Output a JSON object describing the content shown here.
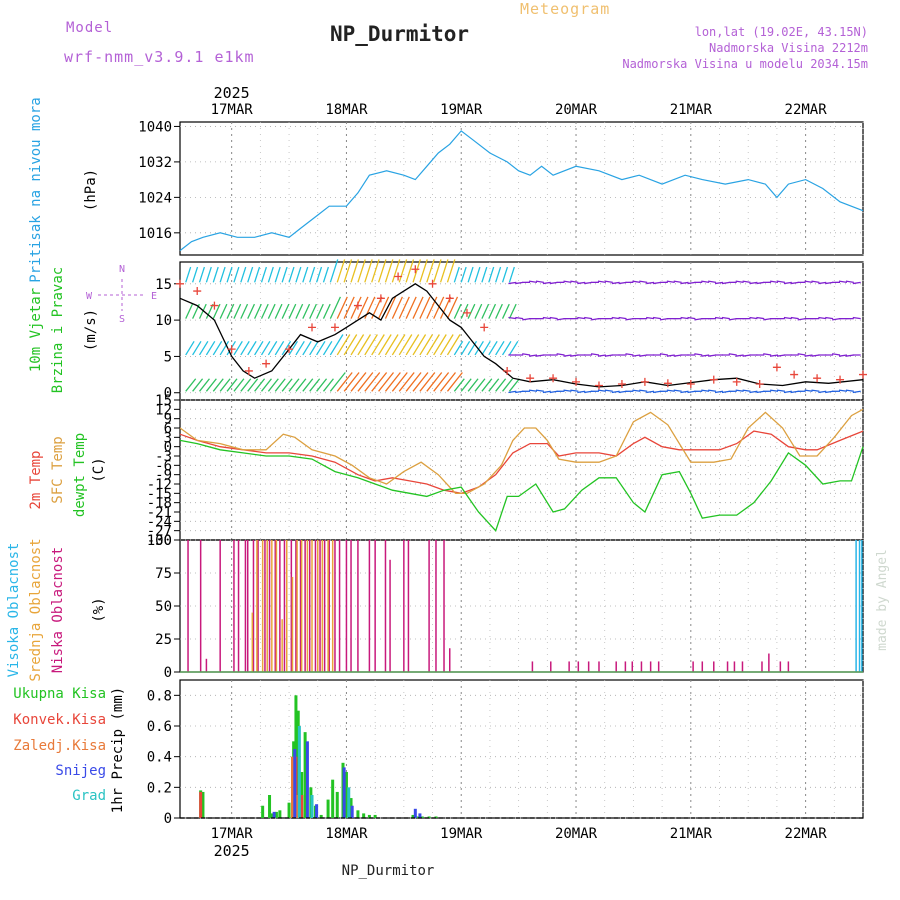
{
  "header": {
    "model_label": "Model",
    "model_name": "wrf-nmm_v3.9.1 e1km",
    "chart_type_label": "Meteogram",
    "station": "NP_Durmitor",
    "lonlat": "lon,lat (19.02E, 43.15N)",
    "altitude": "Nadmorska Visina 2212m",
    "model_altitude": "Nadmorska Visina u modelu 2034.15m"
  },
  "time_axis": {
    "year": "2025",
    "days": [
      "17MAR",
      "18MAR",
      "19MAR",
      "20MAR",
      "21MAR",
      "22MAR"
    ],
    "start_day": 16.55,
    "end_day": 22.5
  },
  "footer": {
    "station": "NP_Durmitor",
    "watermark": "made by Angel"
  },
  "colors": {
    "pressure": "#29a3e3",
    "t2m": "#e8463a",
    "tsfc": "#dca040",
    "dewpoint": "#23c323",
    "wind_speed_line": "#000000",
    "gust_marks": "#e8463a",
    "cloud_high": "#2ab6e8",
    "cloud_mid": "#e8a53a",
    "cloud_low": "#c8197c",
    "rain_total": "#23c323",
    "rain_convective": "#e8463a",
    "rain_freezing": "#e87a3a",
    "snow": "#3a4ae8",
    "graupel": "#2ac3c3"
  },
  "chart_data": [
    {
      "type": "line",
      "panel": "pressure",
      "ylabel": "Pritisak na nivou mora",
      "unit": "(hPa)",
      "ylim": [
        1011,
        1041
      ],
      "yticks": [
        1016,
        1024,
        1032,
        1040
      ],
      "grid": true,
      "series": [
        {
          "x": [
            16.55,
            16.65,
            16.75,
            16.9,
            17.05,
            17.2,
            17.35,
            17.5,
            17.6,
            17.75,
            17.85,
            18.0,
            18.1,
            18.2,
            18.35,
            18.5,
            18.6,
            18.7,
            18.8,
            18.9,
            19.0,
            19.1,
            19.25,
            19.4,
            19.5,
            19.6,
            19.7,
            19.8,
            20.0,
            20.2,
            20.4,
            20.55,
            20.75,
            20.95,
            21.1,
            21.3,
            21.5,
            21.65,
            21.75,
            21.85,
            22.0,
            22.15,
            22.3,
            22.5
          ],
          "y": [
            1012,
            1014,
            1015,
            1016,
            1015,
            1015,
            1016,
            1015,
            1017,
            1020,
            1022,
            1022,
            1025,
            1029,
            1030,
            1029,
            1028,
            1031,
            1034,
            1036,
            1039,
            1037,
            1034,
            1032,
            1030,
            1029,
            1031,
            1029,
            1031,
            1030,
            1028,
            1029,
            1027,
            1029,
            1028,
            1027,
            1028,
            1027,
            1024,
            1027,
            1028,
            1026,
            1023,
            1021
          ]
        }
      ]
    },
    {
      "type": "line",
      "panel": "wind",
      "ylabel": "10m Vjetar Brzina i Pravac",
      "unit": "(m/s)",
      "ylim": [
        -1,
        18
      ],
      "yticks": [
        0,
        5,
        10,
        15
      ],
      "grid": true,
      "series": [
        {
          "name": "speed",
          "x": [
            16.55,
            16.7,
            16.85,
            17.0,
            17.1,
            17.2,
            17.35,
            17.5,
            17.6,
            17.75,
            17.9,
            18.0,
            18.1,
            18.2,
            18.3,
            18.4,
            18.5,
            18.6,
            18.7,
            18.8,
            18.9,
            19.0,
            19.1,
            19.2,
            19.3,
            19.45,
            19.6,
            19.8,
            20.0,
            20.2,
            20.4,
            20.6,
            20.8,
            21.0,
            21.2,
            21.4,
            21.6,
            21.8,
            22.0,
            22.2,
            22.5
          ],
          "y": [
            13,
            12,
            10,
            5,
            3,
            2,
            3,
            6,
            8,
            7,
            8,
            9,
            10,
            11,
            10,
            13,
            14,
            15,
            14,
            12,
            10,
            9,
            7,
            5,
            4,
            2,
            1.5,
            1.8,
            1.2,
            0.8,
            1.0,
            1.5,
            1.0,
            1.4,
            1.8,
            2.0,
            1.2,
            1.0,
            1.5,
            1.3,
            1.8
          ]
        },
        {
          "name": "gust",
          "x": [
            16.55,
            16.7,
            16.85,
            17.0,
            17.15,
            17.3,
            17.5,
            17.7,
            17.9,
            18.1,
            18.3,
            18.45,
            18.6,
            18.75,
            18.9,
            19.05,
            19.2,
            19.4,
            19.6,
            19.8,
            20.0,
            20.2,
            20.4,
            20.6,
            20.8,
            21.0,
            21.2,
            21.4,
            21.6,
            21.75,
            21.9,
            22.1,
            22.3,
            22.5
          ],
          "y": [
            15,
            14,
            12,
            6,
            3,
            4,
            6,
            9,
            9,
            12,
            13,
            16,
            17,
            15,
            13,
            11,
            9,
            3,
            2,
            2,
            1.5,
            1,
            1.2,
            1.5,
            1.3,
            1.2,
            1.8,
            1.5,
            1.2,
            3.5,
            2.5,
            2,
            1.8,
            2.5
          ]
        }
      ]
    },
    {
      "type": "line",
      "panel": "temperature",
      "ylabel": "2m Temp / SFC Temp / dewpt Temp",
      "unit": "(C)",
      "ylim": [
        -30,
        15
      ],
      "yticks": [
        -30,
        -27,
        -24,
        -21,
        -18,
        -15,
        -12,
        -9,
        -6,
        -3,
        0,
        3,
        6,
        9,
        12,
        15
      ],
      "grid": true,
      "series": [
        {
          "name": "2m Temp",
          "x": [
            16.55,
            16.7,
            16.9,
            17.1,
            17.3,
            17.5,
            17.7,
            17.9,
            18.1,
            18.25,
            18.4,
            18.55,
            18.7,
            18.85,
            19.0,
            19.15,
            19.3,
            19.45,
            19.6,
            19.75,
            19.85,
            20.0,
            20.2,
            20.35,
            20.5,
            20.6,
            20.75,
            20.9,
            21.1,
            21.25,
            21.4,
            21.55,
            21.7,
            21.85,
            22.0,
            22.1,
            22.3,
            22.5
          ],
          "y": [
            4,
            2,
            0,
            -1,
            -2,
            -2,
            -3,
            -5,
            -9,
            -11,
            -10,
            -11,
            -12,
            -14,
            -15,
            -13,
            -9,
            -2,
            1,
            1,
            -3,
            -2,
            -2,
            -3,
            1,
            3,
            0,
            -1,
            -1,
            -1,
            1,
            5,
            4,
            0,
            -1,
            -1,
            2,
            5
          ]
        },
        {
          "name": "SFC Temp",
          "x": [
            16.55,
            16.7,
            16.9,
            17.1,
            17.3,
            17.45,
            17.55,
            17.7,
            17.9,
            18.05,
            18.2,
            18.35,
            18.5,
            18.65,
            18.8,
            18.95,
            19.05,
            19.2,
            19.35,
            19.45,
            19.55,
            19.65,
            19.75,
            19.85,
            20.0,
            20.2,
            20.35,
            20.5,
            20.65,
            20.8,
            21.0,
            21.2,
            21.35,
            21.5,
            21.65,
            21.8,
            21.95,
            22.1,
            22.25,
            22.4,
            22.5
          ],
          "y": [
            6,
            2,
            1,
            -1,
            -1,
            4,
            3,
            -1,
            -3,
            -6,
            -10,
            -12,
            -8,
            -5,
            -9,
            -15,
            -15,
            -12,
            -6,
            2,
            6,
            6,
            2,
            -4,
            -5,
            -5,
            -3,
            8,
            11,
            7,
            -5,
            -5,
            -4,
            6,
            11,
            6,
            -3,
            -3,
            3,
            10,
            12
          ]
        },
        {
          "name": "dewpt Temp",
          "x": [
            16.55,
            16.7,
            16.9,
            17.1,
            17.3,
            17.5,
            17.7,
            17.9,
            18.1,
            18.25,
            18.4,
            18.55,
            18.7,
            18.85,
            19.0,
            19.15,
            19.3,
            19.4,
            19.5,
            19.65,
            19.8,
            19.9,
            20.05,
            20.2,
            20.35,
            20.5,
            20.6,
            20.75,
            20.9,
            21.0,
            21.1,
            21.25,
            21.4,
            21.55,
            21.7,
            21.85,
            22.0,
            22.15,
            22.3,
            22.4,
            22.5
          ],
          "y": [
            2,
            1,
            -1,
            -2,
            -3,
            -3,
            -4,
            -8,
            -10,
            -12,
            -14,
            -15,
            -16,
            -14,
            -13,
            -21,
            -27,
            -16,
            -16,
            -12,
            -21,
            -20,
            -14,
            -10,
            -10,
            -18,
            -21,
            -9,
            -8,
            -15,
            -23,
            -22,
            -22,
            -18,
            -11,
            -2,
            -6,
            -12,
            -11,
            -11,
            0
          ]
        }
      ]
    },
    {
      "type": "bar",
      "panel": "cloud",
      "ylabel": "Visoka Oblacnost / Srednja Oblacnost / Niska Oblacnost",
      "unit": "(%)",
      "ylim": [
        0,
        100
      ],
      "yticks": [
        0,
        25,
        50,
        75,
        100
      ],
      "grid": true,
      "series": [
        {
          "name": "Niska Oblacnost",
          "x": [
            16.62,
            16.73,
            16.78,
            16.9,
            17.02,
            17.06,
            17.12,
            17.14,
            17.19,
            17.23,
            17.29,
            17.33,
            17.38,
            17.42,
            17.46,
            17.52,
            17.56,
            17.6,
            17.64,
            17.68,
            17.73,
            17.77,
            17.81,
            17.85,
            17.9,
            17.94,
            18.0,
            18.04,
            18.1,
            18.2,
            18.25,
            18.34,
            18.38,
            18.5,
            18.54,
            18.72,
            18.78,
            18.85,
            18.9,
            19.62,
            19.78,
            19.94,
            20.02,
            20.11,
            20.2,
            20.35,
            20.43,
            20.49,
            20.57,
            20.65,
            20.72,
            21.02,
            21.1,
            21.2,
            21.32,
            21.38,
            21.45,
            21.62,
            21.68,
            21.78,
            21.85
          ],
          "y": [
            100,
            100,
            10,
            100,
            100,
            100,
            100,
            100,
            100,
            100,
            100,
            100,
            100,
            100,
            100,
            100,
            100,
            100,
            100,
            100,
            100,
            100,
            100,
            100,
            100,
            100,
            100,
            100,
            100,
            100,
            100,
            100,
            85,
            100,
            100,
            100,
            100,
            100,
            18,
            8,
            8,
            8,
            8,
            8,
            8,
            8,
            8,
            8,
            8,
            8,
            8,
            8,
            8,
            8,
            8,
            8,
            8,
            8,
            14,
            8,
            8
          ]
        },
        {
          "name": "Srednja Oblacnost",
          "x": [
            17.18,
            17.22,
            17.27,
            17.31,
            17.35,
            17.39,
            17.44,
            17.48,
            17.53,
            17.57,
            17.61,
            17.66,
            17.7,
            17.75,
            17.79,
            17.84,
            17.88
          ],
          "y": [
            45,
            100,
            100,
            100,
            100,
            100,
            40,
            100,
            72,
            100,
            100,
            100,
            100,
            100,
            100,
            100,
            100
          ]
        },
        {
          "name": "Visoka Oblacnost",
          "x": [
            22.44,
            22.47,
            22.49
          ],
          "y": [
            100,
            100,
            100
          ]
        }
      ]
    },
    {
      "type": "bar",
      "panel": "precip",
      "ylabel": "1hr Precip",
      "unit": "(mm)",
      "ylim": [
        0,
        0.9
      ],
      "yticks": [
        0,
        0.2,
        0.4,
        0.6,
        0.8
      ],
      "grid": true,
      "series": [
        {
          "name": "Ukupna Kisa",
          "x": [
            16.73,
            16.75,
            17.27,
            17.33,
            17.35,
            17.39,
            17.42,
            17.5,
            17.54,
            17.56,
            17.58,
            17.61,
            17.64,
            17.69,
            17.73,
            17.78,
            17.84,
            17.88,
            17.92,
            17.97,
            18.0,
            18.04,
            18.1,
            18.15,
            18.2,
            18.25,
            18.58,
            18.62,
            18.66,
            18.72,
            18.78
          ],
          "y": [
            0.18,
            0.17,
            0.08,
            0.15,
            0.03,
            0.04,
            0.05,
            0.1,
            0.5,
            0.8,
            0.7,
            0.3,
            0.56,
            0.2,
            0.08,
            0.02,
            0.12,
            0.25,
            0.17,
            0.36,
            0.3,
            0.13,
            0.05,
            0.03,
            0.02,
            0.02,
            0.02,
            0.01,
            0.01,
            0.01,
            0.01
          ]
        },
        {
          "name": "Konvek.Kisa",
          "x": [
            16.73,
            17.56,
            17.61
          ],
          "y": [
            0.17,
            0.4,
            0.15
          ]
        },
        {
          "name": "Zaledj.Kisa",
          "x": [
            17.53,
            17.57
          ],
          "y": [
            0.4,
            0.15
          ]
        },
        {
          "name": "Snijeg",
          "x": [
            17.37,
            17.55,
            17.66,
            17.74,
            17.98,
            18.05,
            18.6,
            18.64
          ],
          "y": [
            0.04,
            0.45,
            0.5,
            0.09,
            0.33,
            0.08,
            0.06,
            0.03
          ]
        },
        {
          "name": "Grad",
          "x": [
            17.59,
            17.7,
            18.02
          ],
          "y": [
            0.6,
            0.15,
            0.2
          ]
        }
      ]
    }
  ],
  "panel_labels": {
    "pressure": [
      "Pritisak na nivou mora"
    ],
    "wind": [
      "10m Vjetar",
      "Brzina i Pravac"
    ],
    "temperature": [
      "2m Temp",
      "SFC Temp",
      "dewpt Temp"
    ],
    "cloud": [
      "Visoka Oblacnost",
      "Srednja Oblacnost",
      "Niska Oblacnost"
    ],
    "precip_legend": [
      "Ukupna Kisa",
      "Konvek.Kisa",
      "Zaledj.Kisa",
      "Snijeg",
      "Grad"
    ],
    "wind_compass": [
      "N",
      "E",
      "S",
      "W"
    ]
  }
}
